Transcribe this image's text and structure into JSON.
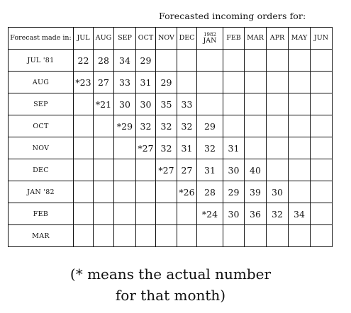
{
  "super_header": "Forecasted incoming orders for:",
  "corner_header": "Forecast made in:",
  "columns": [
    {
      "year": "",
      "month": "JUL"
    },
    {
      "year": "",
      "month": "AUG"
    },
    {
      "year": "",
      "month": "SEP"
    },
    {
      "year": "",
      "month": "OCT"
    },
    {
      "year": "",
      "month": "NOV"
    },
    {
      "year": "",
      "month": "DEC"
    },
    {
      "year": "1982",
      "month": "JAN"
    },
    {
      "year": "",
      "month": "FEB"
    },
    {
      "year": "",
      "month": "MAR"
    },
    {
      "year": "",
      "month": "APR"
    },
    {
      "year": "",
      "month": "MAY"
    },
    {
      "year": "",
      "month": "JUN"
    }
  ],
  "rows": [
    {
      "label": "JUL '81",
      "cells": [
        "22",
        "28",
        "34",
        "29",
        "",
        "",
        "",
        "",
        "",
        "",
        "",
        ""
      ]
    },
    {
      "label": "AUG",
      "cells": [
        "*23",
        "27",
        "33",
        "31",
        "29",
        "",
        "",
        "",
        "",
        "",
        "",
        ""
      ]
    },
    {
      "label": "SEP",
      "cells": [
        "",
        "*21",
        "30",
        "30",
        "35",
        "33",
        "",
        "",
        "",
        "",
        "",
        ""
      ]
    },
    {
      "label": "OCT",
      "cells": [
        "",
        "",
        "*29",
        "32",
        "32",
        "32",
        "29",
        "",
        "",
        "",
        "",
        ""
      ]
    },
    {
      "label": "NOV",
      "cells": [
        "",
        "",
        "",
        "*27",
        "32",
        "31",
        "32",
        "31",
        "",
        "",
        "",
        ""
      ]
    },
    {
      "label": "DEC",
      "cells": [
        "",
        "",
        "",
        "",
        "*27",
        "27",
        "31",
        "30",
        "40",
        "",
        "",
        ""
      ]
    },
    {
      "label": "JAN '82",
      "cells": [
        "",
        "",
        "",
        "",
        "",
        "*26",
        "28",
        "29",
        "39",
        "30",
        "",
        ""
      ]
    },
    {
      "label": "FEB",
      "cells": [
        "",
        "",
        "",
        "",
        "",
        "",
        "*24",
        "30",
        "36",
        "32",
        "34",
        ""
      ]
    },
    {
      "label": "MAR",
      "cells": [
        "",
        "",
        "",
        "",
        "",
        "",
        "",
        "",
        "",
        "",
        "",
        ""
      ]
    }
  ],
  "footnote": {
    "line1": "(* means the actual number",
    "line2": "for that month)"
  }
}
